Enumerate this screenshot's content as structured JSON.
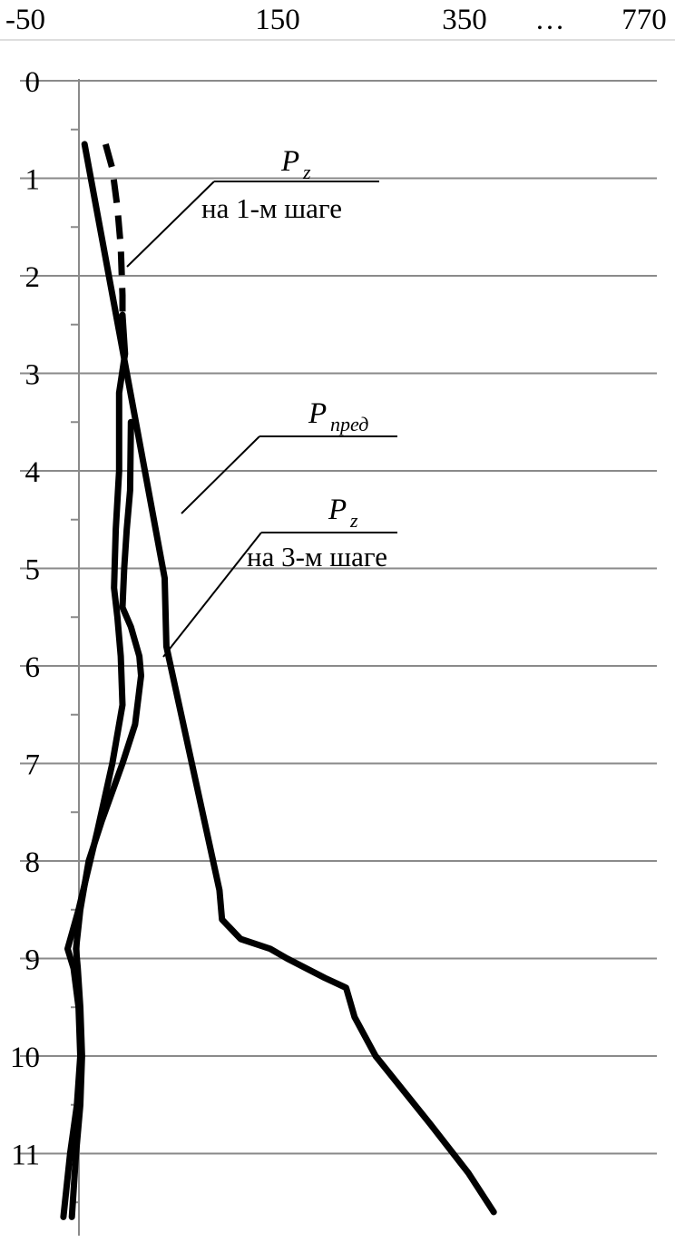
{
  "chart_data": {
    "type": "line",
    "title": "",
    "xlabel": "",
    "ylabel": "",
    "x_tick_labels": [
      "-50",
      "150",
      "350",
      "…",
      "770"
    ],
    "y_ticks": [
      0,
      1,
      2,
      3,
      4,
      5,
      6,
      7,
      8,
      9,
      10,
      11
    ],
    "ylim": [
      0,
      11.65
    ],
    "y_inverted": true,
    "grid": true,
    "axis_break": "x axis compressed between 350 and 770",
    "annotations": [
      {
        "id": "pz1",
        "label": "P",
        "sub": "z",
        "text": "на 1-м шаге",
        "target": "series_pz_step1"
      },
      {
        "id": "pp",
        "label": "P",
        "sub": "пред",
        "text": "",
        "target": "series_p_pred"
      },
      {
        "id": "pz3",
        "label": "P",
        "sub": "z",
        "text": "на 3-м шаге",
        "target": "series_pz_step3"
      }
    ],
    "series": [
      {
        "id": "pz1_dashed",
        "style": "dashed",
        "color": "#000000",
        "points": [
          [
            -20,
            0.65
          ],
          [
            -12,
            0.9
          ],
          [
            -6,
            1.3
          ],
          [
            -2,
            1.7
          ],
          [
            0,
            2.2
          ],
          [
            0,
            2.6
          ]
        ]
      },
      {
        "id": "p_pred",
        "style": "solid",
        "color": "#000000",
        "points": [
          [
            -45,
            0.65
          ],
          [
            50,
            5.1
          ],
          [
            52,
            5.8
          ],
          [
            115,
            8.3
          ],
          [
            118,
            8.6
          ],
          [
            140,
            8.8
          ],
          [
            175,
            8.9
          ],
          [
            195,
            9.0
          ],
          [
            240,
            9.2
          ],
          [
            265,
            9.3
          ],
          [
            275,
            9.6
          ],
          [
            300,
            10.0
          ],
          [
            365,
            10.7
          ],
          [
            410,
            11.2
          ],
          [
            440,
            11.6
          ]
        ]
      },
      {
        "id": "pz3_outer",
        "style": "solid",
        "color": "#000000",
        "points": [
          [
            0,
            2.4
          ],
          [
            3,
            2.8
          ],
          [
            -4,
            3.2
          ],
          [
            -4,
            4.0
          ],
          [
            -8,
            4.6
          ],
          [
            -10,
            5.2
          ],
          [
            -6,
            5.5
          ],
          [
            -2,
            5.9
          ],
          [
            0,
            6.4
          ],
          [
            -12,
            7.0
          ],
          [
            -30,
            7.7
          ],
          [
            -52,
            8.5
          ],
          [
            -65,
            8.9
          ],
          [
            -58,
            9.1
          ],
          [
            -52,
            9.5
          ],
          [
            -50,
            10.0
          ],
          [
            -54,
            10.5
          ],
          [
            -62,
            11.0
          ],
          [
            -70,
            11.65
          ]
        ]
      },
      {
        "id": "pz3_inner",
        "style": "solid",
        "color": "#000000",
        "points": [
          [
            10,
            3.5
          ],
          [
            9,
            4.2
          ],
          [
            5,
            4.6
          ],
          [
            2,
            5.0
          ],
          [
            0,
            5.4
          ],
          [
            10,
            5.6
          ],
          [
            20,
            5.9
          ],
          [
            22,
            6.1
          ],
          [
            15,
            6.6
          ],
          [
            0,
            7.0
          ],
          [
            -25,
            7.6
          ],
          [
            -40,
            8.0
          ],
          [
            -50,
            8.5
          ],
          [
            -55,
            8.9
          ],
          [
            -53,
            9.1
          ],
          [
            -50,
            9.5
          ],
          [
            -48,
            10.0
          ],
          [
            -50,
            10.5
          ],
          [
            -55,
            11.0
          ],
          [
            -60,
            11.65
          ]
        ]
      }
    ]
  }
}
